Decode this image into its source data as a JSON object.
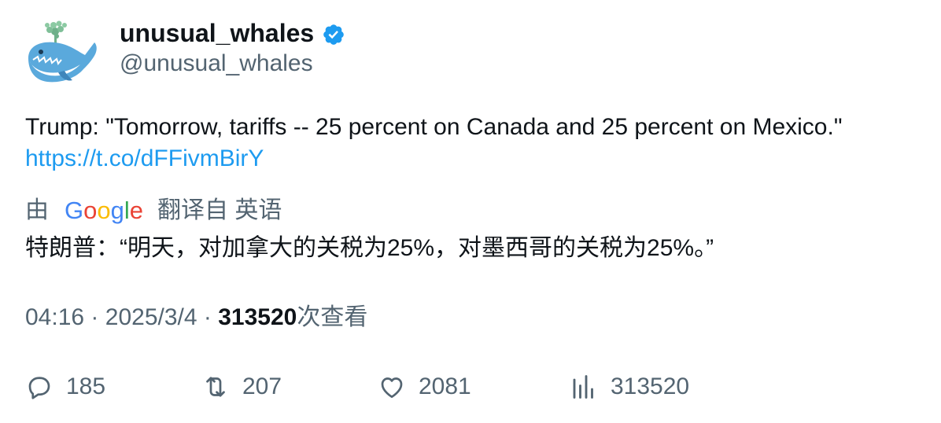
{
  "author": {
    "display_name": "unusual_whales",
    "handle": "@unusual_whales",
    "verified": true,
    "avatar_icon": "whale-avatar-icon"
  },
  "tweet": {
    "text": "Trump: \"Tomorrow, tariffs -- 25 percent on Canada and 25 percent on Mexico.\"",
    "link": "https://t.co/dFFivmBirY"
  },
  "translation": {
    "by_label": "由",
    "provider": "Google",
    "from_label": "翻译自 英语",
    "text": "特朗普：“明天，对加拿大的关税为25%，对墨西哥的关税为25%。”"
  },
  "meta": {
    "time": "04:16",
    "separator": "·",
    "date": "2025/3/4",
    "views_count": "313520",
    "views_label": "次查看"
  },
  "actions": {
    "replies": "185",
    "retweets": "207",
    "likes": "2081",
    "views": "313520"
  },
  "colors": {
    "link": "#1d9bf0",
    "secondary_text": "#536471",
    "primary_text": "#0f1419",
    "verified_badge": "#1d9bf0"
  }
}
